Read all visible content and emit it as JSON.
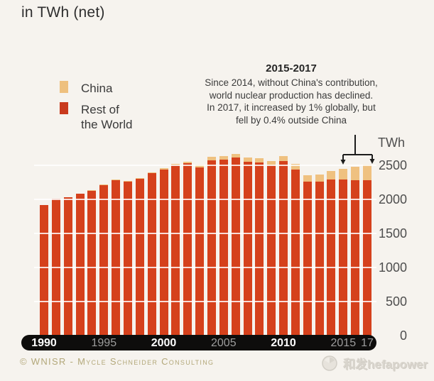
{
  "title": "in TWh (net)",
  "legend": {
    "items": [
      {
        "label": "China",
        "color": "#eec07e"
      },
      {
        "label": "Rest of\nthe World",
        "color": "#c93a1d"
      }
    ]
  },
  "annotation": {
    "heading": "2015-2017",
    "lines": [
      "Since 2014, without China's contribution,",
      "world nuclear production has declined.",
      "In 2017, it increased by 1% globally, but",
      "fell by 0.4% outside China"
    ]
  },
  "axis": {
    "unit_label": "TWh",
    "y_ticks": [
      2500,
      2000,
      1500,
      1000,
      500,
      0
    ],
    "x_ticks": [
      {
        "label": "1990",
        "year": 1990,
        "emphasis": true
      },
      {
        "label": "1995",
        "year": 1995,
        "emphasis": false
      },
      {
        "label": "2000",
        "year": 2000,
        "emphasis": true
      },
      {
        "label": "2005",
        "year": 2005,
        "emphasis": false
      },
      {
        "label": "2010",
        "year": 2010,
        "emphasis": true
      },
      {
        "label": "2015",
        "year": 2015,
        "emphasis": false
      },
      {
        "label": "17",
        "year": 2017,
        "emphasis": false
      }
    ]
  },
  "footer": {
    "credit": "© WNISR - Mycle Schneider Consulting"
  },
  "watermark": {
    "text": "和发hefapower"
  },
  "colors": {
    "china": "#efc180",
    "rest_of_world": "#d5411c",
    "background": "#f6f3ee",
    "axis_bar": "#0e0d0c"
  },
  "chart_data": {
    "type": "bar",
    "stacked": true,
    "title": "in TWh (net)",
    "ylabel": "TWh",
    "xlabel": "",
    "x": [
      1990,
      1991,
      1992,
      1993,
      1994,
      1995,
      1996,
      1997,
      1998,
      1999,
      2000,
      2001,
      2002,
      2003,
      2004,
      2005,
      2006,
      2007,
      2008,
      2009,
      2010,
      2011,
      2012,
      2013,
      2014,
      2015,
      2016,
      2017
    ],
    "series": [
      {
        "name": "China",
        "color": "#efc180",
        "values": [
          0,
          0,
          0,
          0,
          14,
          12,
          13,
          14,
          13,
          14,
          16,
          17,
          23,
          42,
          48,
          50,
          52,
          59,
          65,
          66,
          71,
          83,
          93,
          105,
          124,
          161,
          198,
          233
        ]
      },
      {
        "name": "Rest of the World",
        "color": "#d5411c",
        "values": [
          1912,
          2009,
          2027,
          2079,
          2116,
          2198,
          2277,
          2257,
          2300,
          2380,
          2434,
          2500,
          2523,
          2462,
          2568,
          2576,
          2608,
          2549,
          2536,
          2492,
          2559,
          2435,
          2253,
          2254,
          2286,
          2280,
          2278,
          2270
        ]
      }
    ],
    "totals": [
      1912,
      2009,
      2027,
      2079,
      2130,
      2210,
      2290,
      2271,
      2313,
      2394,
      2450,
      2517,
      2546,
      2504,
      2616,
      2626,
      2660,
      2608,
      2601,
      2558,
      2630,
      2518,
      2346,
      2359,
      2410,
      2441,
      2476,
      2503
    ],
    "ylim": [
      0,
      2700
    ],
    "y_ticks": [
      0,
      500,
      1000,
      1500,
      2000,
      2500
    ],
    "grid": "horizontal",
    "legend_position": "upper-left",
    "annotation_target_years": [
      2015,
      2016,
      2017
    ]
  }
}
